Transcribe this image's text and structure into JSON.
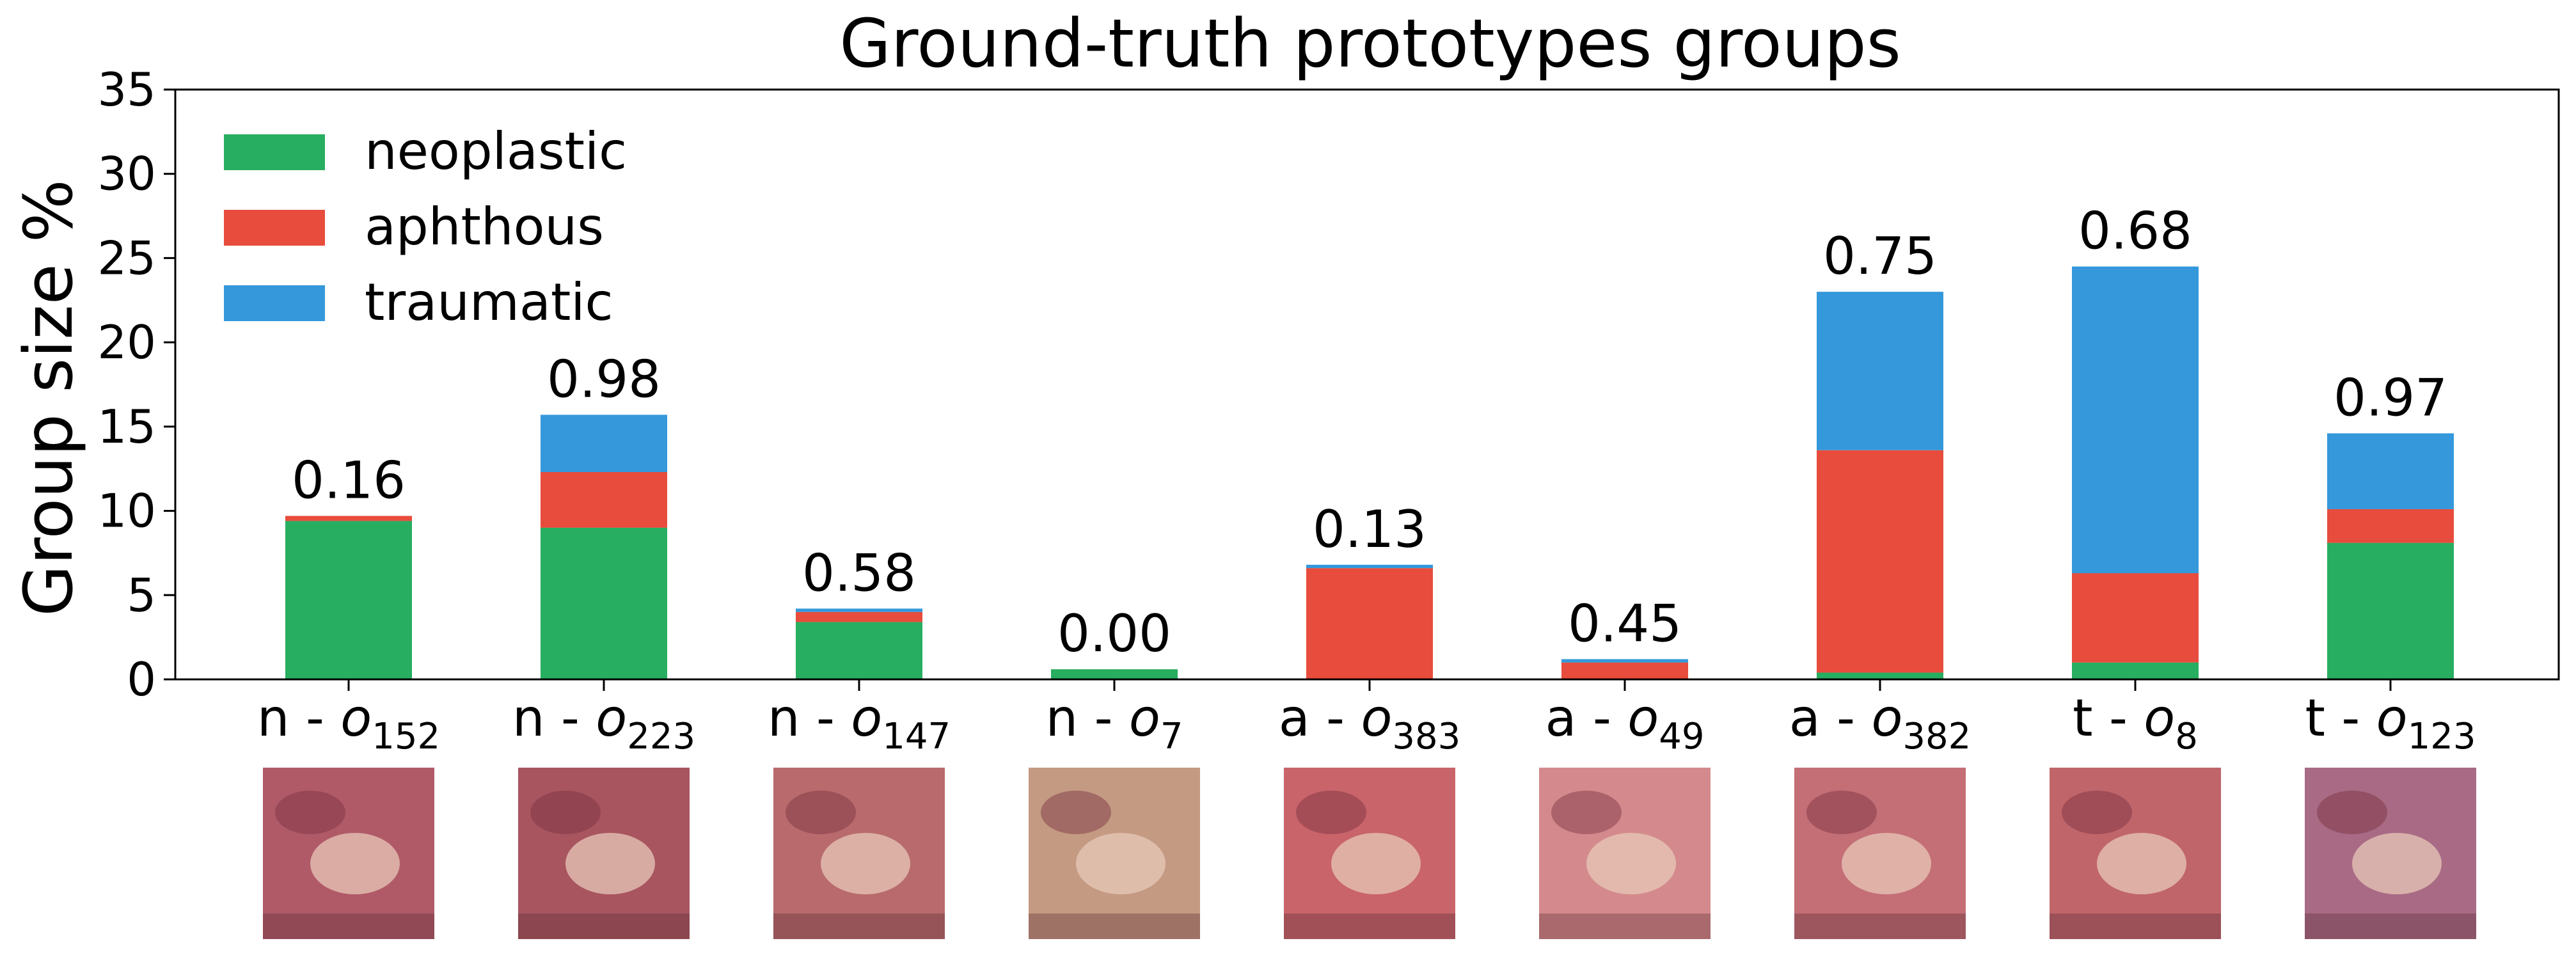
{
  "chart_data": {
    "type": "bar",
    "stacked": true,
    "title": "Ground-truth prototypes groups",
    "ylabel": "Group size %",
    "xlabel": "",
    "ylim": [
      0,
      35
    ],
    "yticks": [
      0,
      5,
      10,
      15,
      20,
      25,
      30,
      35
    ],
    "grid": false,
    "legend_position": "top-left",
    "categories": [
      {
        "prefix": "n - ",
        "symbol": "o",
        "subscript": "152"
      },
      {
        "prefix": "n - ",
        "symbol": "o",
        "subscript": "223"
      },
      {
        "prefix": "n - ",
        "symbol": "o",
        "subscript": "147"
      },
      {
        "prefix": "n - ",
        "symbol": "o",
        "subscript": "7"
      },
      {
        "prefix": "a - ",
        "symbol": "o",
        "subscript": "383"
      },
      {
        "prefix": "a - ",
        "symbol": "o",
        "subscript": "49"
      },
      {
        "prefix": "a - ",
        "symbol": "o",
        "subscript": "382"
      },
      {
        "prefix": "t - ",
        "symbol": "o",
        "subscript": "8"
      },
      {
        "prefix": "t - ",
        "symbol": "o",
        "subscript": "123"
      }
    ],
    "series": [
      {
        "name": "neoplastic",
        "color": "#27ae60",
        "values": [
          9.4,
          9.0,
          3.4,
          0.6,
          0.0,
          0.0,
          0.4,
          1.0,
          8.1
        ]
      },
      {
        "name": "aphthous",
        "color": "#e74c3c",
        "values": [
          0.3,
          3.3,
          0.6,
          0.0,
          6.6,
          1.0,
          13.2,
          5.3,
          2.0
        ]
      },
      {
        "name": "traumatic",
        "color": "#3498db",
        "values": [
          0.0,
          3.4,
          0.2,
          0.0,
          0.2,
          0.2,
          9.4,
          18.2,
          4.5
        ]
      }
    ],
    "bar_labels": [
      "0.16",
      "0.98",
      "0.58",
      "0.00",
      "0.13",
      "0.45",
      "0.75",
      "0.68",
      "0.97"
    ]
  },
  "thumbnails": [
    {
      "icon": "oral-lesion-photo",
      "color": "#b05a68"
    },
    {
      "icon": "oral-lesion-photo",
      "color": "#a85560"
    },
    {
      "icon": "oral-lesion-photo",
      "color": "#b86a6c"
    },
    {
      "icon": "oral-lesion-photo",
      "color": "#c49a82"
    },
    {
      "icon": "oral-lesion-photo",
      "color": "#c8646a"
    },
    {
      "icon": "oral-lesion-photo",
      "color": "#d48a8c"
    },
    {
      "icon": "oral-lesion-photo",
      "color": "#c46e76"
    },
    {
      "icon": "oral-lesion-photo",
      "color": "#c0656a"
    },
    {
      "icon": "oral-lesion-photo",
      "color": "#a86a84"
    }
  ]
}
